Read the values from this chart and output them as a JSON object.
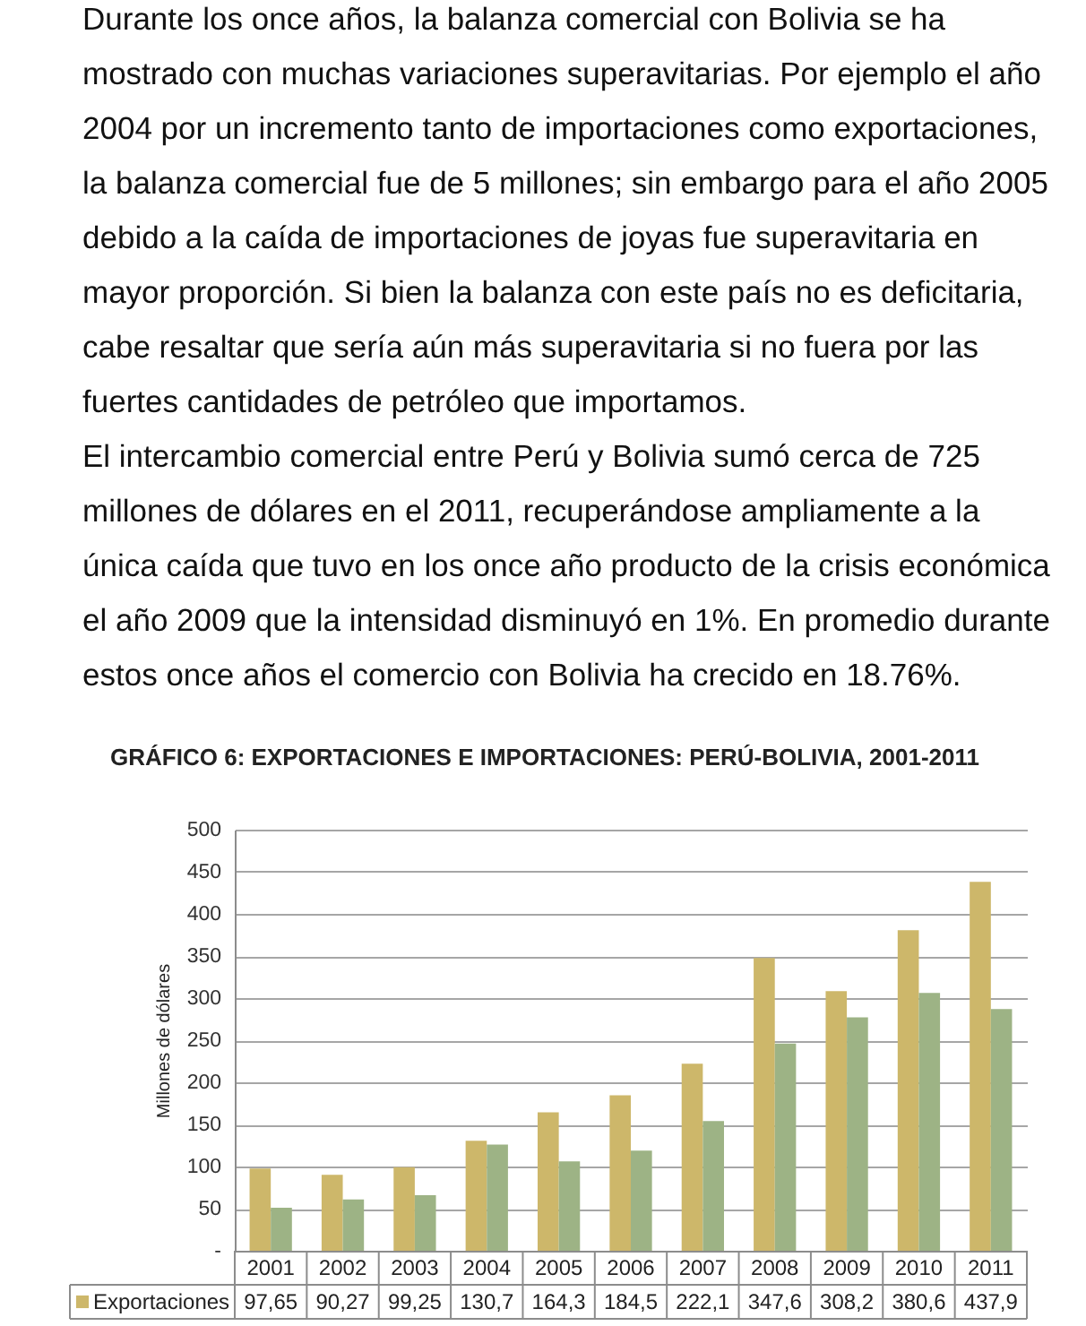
{
  "chart_data": {
    "type": "bar",
    "title": "GRÁFICO 6: EXPORTACIONES E IMPORTACIONES: PERÚ-BOLIVIA, 2001-2011",
    "ylabel": "Millones de dólares",
    "categories": [
      "2001",
      "2002",
      "2003",
      "2004",
      "2005",
      "2006",
      "2007",
      "2008",
      "2009",
      "2010",
      "2011"
    ],
    "series": [
      {
        "name": "Exportaciones",
        "color": "#cdb76a",
        "values": [
          97.65,
          90.27,
          99.25,
          130.7,
          164.3,
          184.5,
          222.1,
          347.6,
          308.2,
          380.6,
          437.9
        ],
        "value_labels": [
          "97,65",
          "90,27",
          "99,25",
          "130,7",
          "164,3",
          "184,5",
          "222,1",
          "347,6",
          "308,2",
          "380,6",
          "437,9"
        ]
      },
      {
        "color": "#9db385",
        "values": [
          51,
          61,
          66,
          126,
          106,
          119,
          154,
          246,
          277,
          306,
          287
        ]
      }
    ],
    "ylim": [
      0,
      500
    ],
    "yticks": [
      {
        "value": 0,
        "label": "-"
      },
      50,
      100,
      150,
      200,
      250,
      300,
      350,
      400,
      450,
      500
    ],
    "grid": "y",
    "legend": "bottom",
    "annotations": [
      "Durante los once años, la balanza comercial con Bolivia se ha mostrado con muchas variaciones superavitarias. Por ejemplo el año 2004 por un incremento tanto de importaciones como exportaciones, la balanza comercial fue de 5 millones; sin embargo para el año 2005 debido a la caída de importaciones de joyas fue superavitaria en mayor proporción. Si bien la balanza con este país no es deficitaria, cabe resaltar que sería aún más superavitaria si no fuera por las fuertes cantidades de petróleo que importamos.",
      "El intercambio comercial entre Perú y Bolivia sumó cerca de 725 millones de dólares en el 2011, recuperándose ampliamente a la única caída que tuvo en los once año producto de la crisis económica el año 2009 que la intensidad disminuyó en 1%. En promedio durante estos once años el comercio con Bolivia ha crecido en 18.76%."
    ]
  }
}
